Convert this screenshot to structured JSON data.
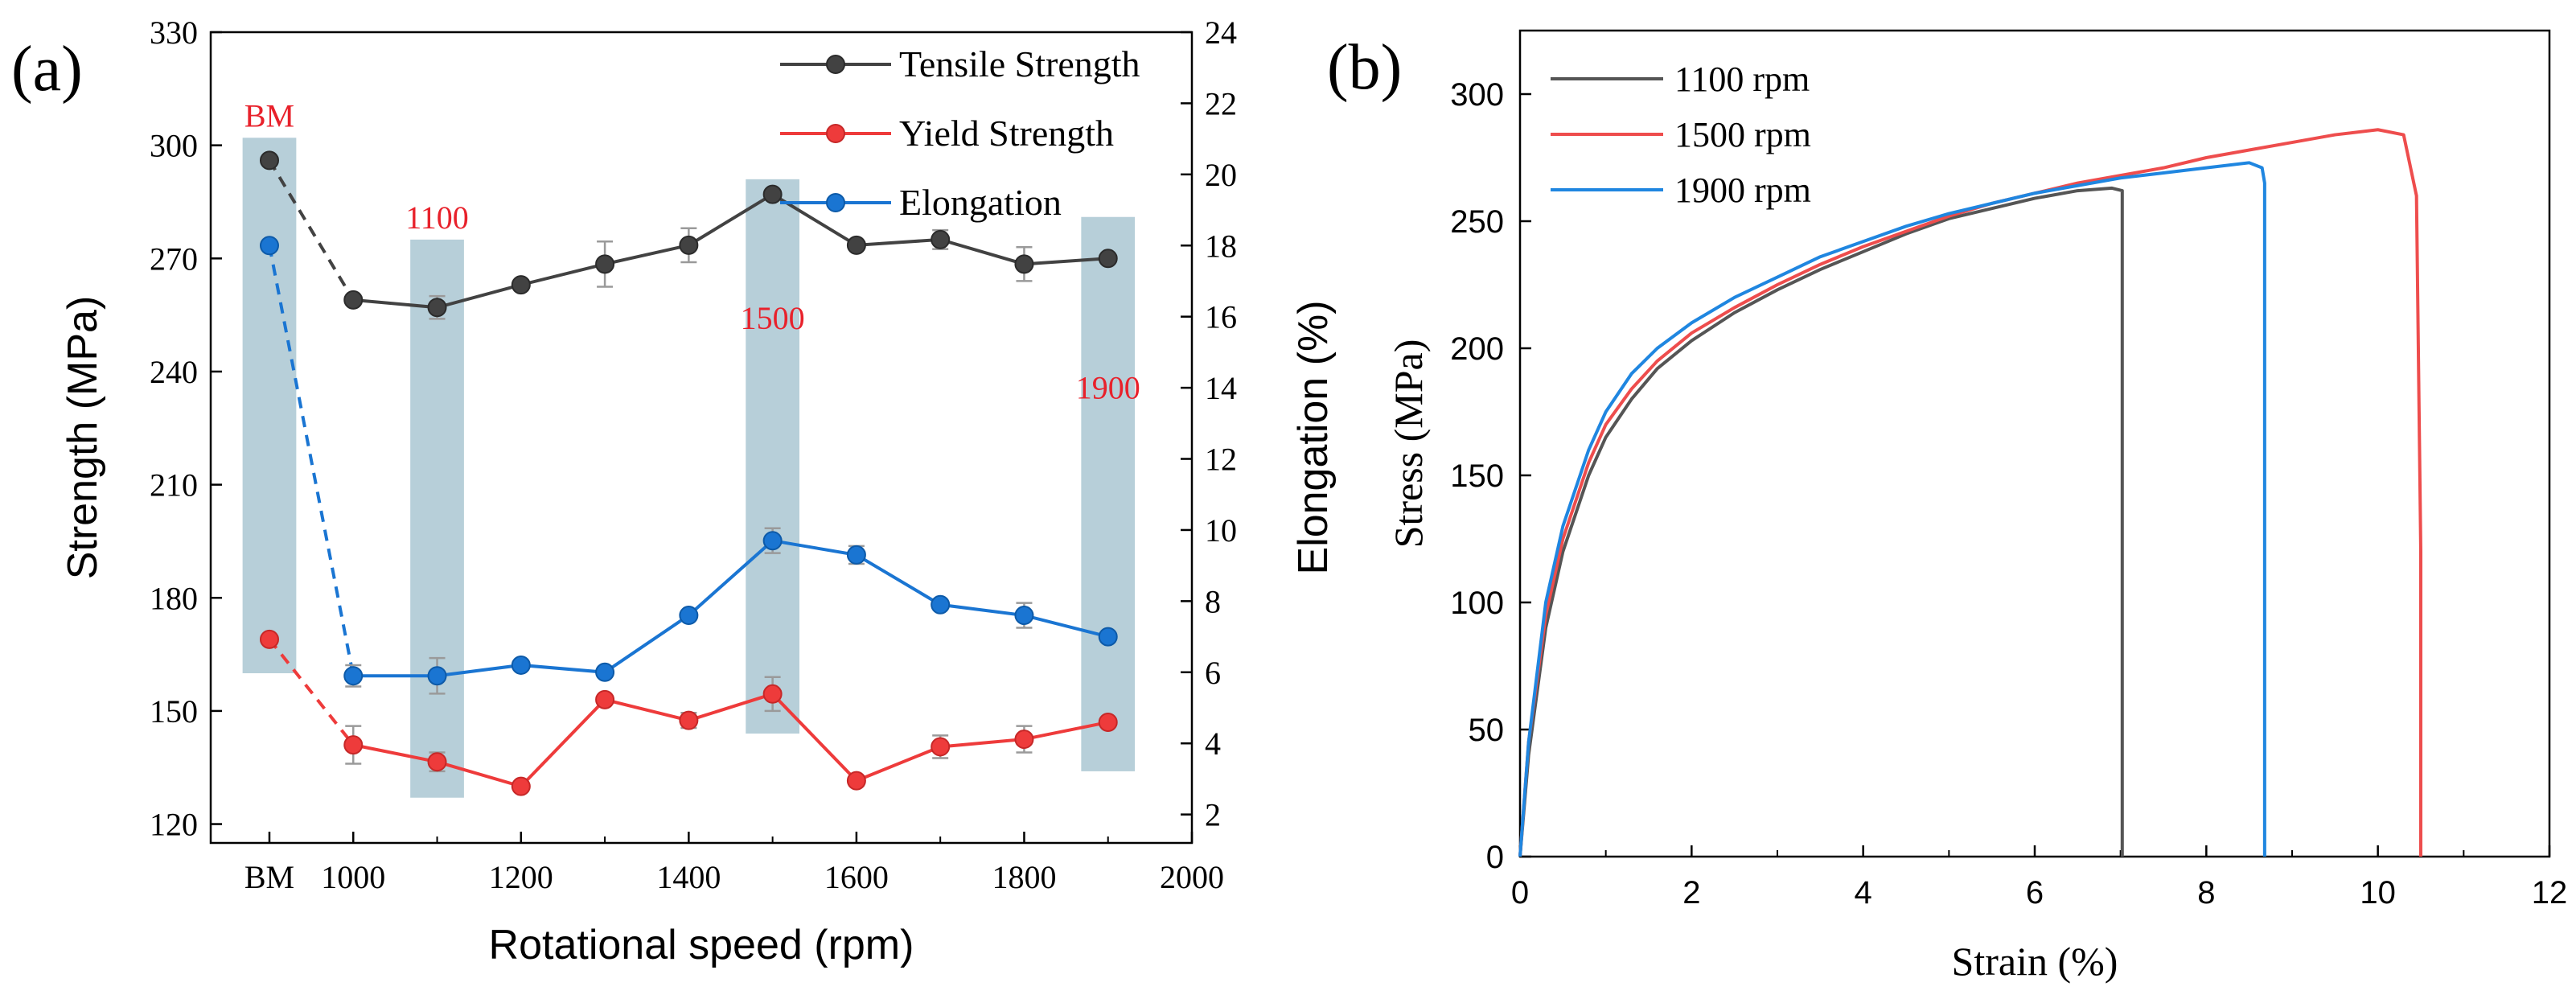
{
  "chart_data": [
    {
      "panel_label": "(a)",
      "type": "line",
      "xlabel": "Rotational speed (rpm)",
      "ylabel": "Strength (MPa)",
      "y2label": "Elongation (%)",
      "x_categories": [
        "BM",
        "1000",
        "1100",
        "1200",
        "1300",
        "1400",
        "1500",
        "1600",
        "1700",
        "1800",
        "1900"
      ],
      "x_ticks": [
        {
          "label": "BM",
          "x": 900
        },
        {
          "label": "1000",
          "x": 1000
        },
        {
          "label": "1200",
          "x": 1200
        },
        {
          "label": "1400",
          "x": 1400
        },
        {
          "label": "1600",
          "x": 1600
        },
        {
          "label": "1800",
          "x": 1800
        },
        {
          "label": "2000",
          "x": 2000
        }
      ],
      "xlim": [
        830,
        2000
      ],
      "ylim": [
        115,
        330
      ],
      "y_ticks": [
        120,
        150,
        180,
        210,
        240,
        270,
        300,
        330
      ],
      "y2lim": [
        1.2,
        24
      ],
      "y2_ticks": [
        2,
        4,
        6,
        8,
        10,
        12,
        14,
        16,
        18,
        20,
        22,
        24
      ],
      "highlight_bands": [
        {
          "label": "BM",
          "x_from": 868,
          "x_to": 932,
          "y_from": 160,
          "y_to": 302,
          "label_color": "#e8212b"
        },
        {
          "label": "1100",
          "x_from": 1068,
          "x_to": 1132,
          "y_from": 127,
          "y_to": 275,
          "label_color": "#e8212b"
        },
        {
          "label": "1500",
          "x_from": 1468,
          "x_to": 1532,
          "y_from": 144,
          "y_to": 291,
          "label_color": "#e8212b"
        },
        {
          "label": "1900",
          "x_from": 1868,
          "x_to": 1932,
          "y_from": 134,
          "y_to": 281,
          "label_color": "#e8212b"
        }
      ],
      "series": [
        {
          "name": "Tensile Strength",
          "axis": "left",
          "color": "#424242",
          "x": [
            900,
            1000,
            1100,
            1200,
            1300,
            1400,
            1500,
            1600,
            1700,
            1800,
            1900
          ],
          "values": [
            296,
            259,
            257,
            263,
            268.5,
            273.5,
            287,
            273.5,
            275,
            268.5,
            270
          ],
          "errors": [
            0,
            0,
            3,
            0,
            6,
            4.5,
            0,
            0,
            2.5,
            4.5,
            0
          ]
        },
        {
          "name": "Yield Strength",
          "axis": "left",
          "color": "#ee3b3b",
          "x": [
            900,
            1000,
            1100,
            1200,
            1300,
            1400,
            1500,
            1600,
            1700,
            1800,
            1900
          ],
          "values": [
            169,
            141,
            136.5,
            130,
            153,
            147.5,
            154.5,
            131.5,
            140.5,
            142.5,
            147
          ],
          "errors": [
            0,
            5,
            2.5,
            0,
            0,
            2,
            4.5,
            0,
            3,
            3.5,
            0
          ]
        },
        {
          "name": "Elongation",
          "axis": "right",
          "color": "#1a75d2",
          "x": [
            900,
            1000,
            1100,
            1200,
            1300,
            1400,
            1500,
            1600,
            1700,
            1800,
            1900
          ],
          "values": [
            18,
            5.9,
            5.9,
            6.2,
            6,
            7.6,
            9.7,
            9.3,
            7.9,
            7.6,
            7
          ],
          "errors": [
            0,
            0.3,
            0.5,
            0,
            0,
            0,
            0.35,
            0.25,
            0,
            0.35,
            0
          ]
        }
      ]
    },
    {
      "panel_label": "(b)",
      "type": "line",
      "xlabel": "Strain (%)",
      "ylabel": "Stress (MPa)",
      "xlim": [
        0,
        12
      ],
      "x_ticks": [
        0,
        2,
        4,
        6,
        8,
        10,
        12
      ],
      "ylim": [
        0,
        325
      ],
      "y_ticks": [
        0,
        50,
        100,
        150,
        200,
        250,
        300
      ],
      "series": [
        {
          "name": "1100 rpm",
          "color": "#555555",
          "x": [
            0,
            0.1,
            0.3,
            0.5,
            0.8,
            1.0,
            1.3,
            1.6,
            2.0,
            2.5,
            3.0,
            3.5,
            4.0,
            4.5,
            5.0,
            5.5,
            6.0,
            6.5,
            6.9,
            7.02,
            7.02
          ],
          "y": [
            0,
            40,
            90,
            120,
            150,
            165,
            180,
            192,
            203,
            214,
            223,
            231,
            238,
            245,
            251,
            255,
            259,
            262,
            263,
            262,
            0
          ]
        },
        {
          "name": "1500 rpm",
          "color": "#ee4d4d",
          "x": [
            0,
            0.1,
            0.3,
            0.5,
            0.8,
            1.0,
            1.3,
            1.6,
            2.0,
            2.5,
            3.0,
            3.5,
            4.0,
            4.5,
            5.0,
            5.5,
            6.0,
            6.5,
            7.0,
            7.5,
            8.0,
            8.5,
            9.0,
            9.5,
            10.0,
            10.3,
            10.45,
            10.5,
            10.5
          ],
          "y": [
            0,
            45,
            95,
            125,
            155,
            170,
            184,
            195,
            206,
            216,
            225,
            233,
            240,
            246,
            252,
            257,
            261,
            265,
            268,
            271,
            275,
            278,
            281,
            284,
            286,
            284,
            260,
            120,
            0
          ]
        },
        {
          "name": "1900 rpm",
          "color": "#1f86e0",
          "x": [
            0,
            0.1,
            0.3,
            0.5,
            0.8,
            1.0,
            1.3,
            1.6,
            2.0,
            2.5,
            3.0,
            3.5,
            4.0,
            4.5,
            5.0,
            5.5,
            6.0,
            6.5,
            7.0,
            7.5,
            8.0,
            8.5,
            8.65,
            8.68,
            8.68
          ],
          "y": [
            0,
            45,
            100,
            130,
            160,
            175,
            190,
            200,
            210,
            220,
            228,
            236,
            242,
            248,
            253,
            257,
            261,
            264,
            267,
            269,
            271,
            273,
            271,
            265,
            0
          ]
        }
      ]
    }
  ]
}
